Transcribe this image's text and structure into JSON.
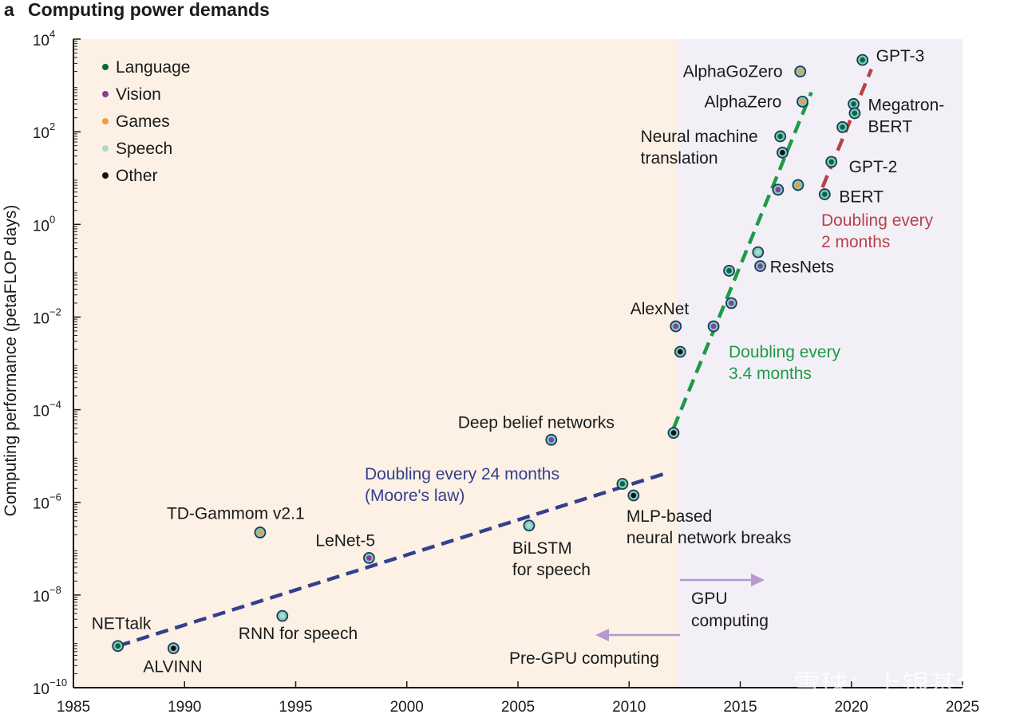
{
  "chart_data": {
    "type": "scatter",
    "panel_label": "a",
    "title": "Computing power demands",
    "xlabel": "",
    "ylabel": "Computing performance (petaFLOP days)",
    "xlim": [
      1985,
      2025
    ],
    "ylim_log10": [
      -10,
      4
    ],
    "x_ticks": [
      1985,
      1990,
      1995,
      2000,
      2005,
      2010,
      2015,
      2020,
      2025
    ],
    "x_tick_labels": [
      "1985",
      "1990",
      "1995",
      "2000",
      "2005",
      "2010",
      "2015",
      "2020",
      "2025"
    ],
    "y_ticks_log10": [
      -10,
      -8,
      -6,
      -4,
      -2,
      0,
      2,
      4
    ],
    "y_tick_labels": [
      {
        "base": "10",
        "exp": "−10"
      },
      {
        "base": "10",
        "exp": "−8"
      },
      {
        "base": "10",
        "exp": "−6"
      },
      {
        "base": "10",
        "exp": "−4"
      },
      {
        "base": "10",
        "exp": "−2"
      },
      {
        "base": "10",
        "exp": "0"
      },
      {
        "base": "10",
        "exp": "2"
      },
      {
        "base": "10",
        "exp": "4"
      }
    ],
    "regions": [
      {
        "name": "Pre-GPU computing",
        "x_from": 1985,
        "x_to": 2012.2,
        "color": "#fdf1e6"
      },
      {
        "name": "GPU computing",
        "x_from": 2012.2,
        "x_to": 2025,
        "color": "#f3eff7"
      }
    ],
    "legend": [
      {
        "name": "Language",
        "color": "#006b3f"
      },
      {
        "name": "Vision",
        "color": "#8e3a9e"
      },
      {
        "name": "Games",
        "color": "#e8a040"
      },
      {
        "name": "Speech",
        "color": "#a9dccc"
      },
      {
        "name": "Other",
        "color": "#111111"
      }
    ],
    "points": [
      {
        "label": "NETtalk",
        "x": 1987.0,
        "log10_y": -9.1,
        "category": "Language"
      },
      {
        "label": "ALVINN",
        "x": 1989.5,
        "log10_y": -9.15,
        "category": "Other"
      },
      {
        "label": "RNN for speech",
        "x": 1994.4,
        "log10_y": -8.45,
        "category": "Speech"
      },
      {
        "label": "TD-Gammom v2.1",
        "x": 1993.4,
        "log10_y": -6.65,
        "category": "Games"
      },
      {
        "label": "LeNet-5",
        "x": 1998.3,
        "log10_y": -7.2,
        "category": "Vision"
      },
      {
        "label": "BiLSTM for speech",
        "x": 2005.5,
        "log10_y": -6.5,
        "category": "Speech"
      },
      {
        "label": "Deep belief networks",
        "x": 2006.5,
        "log10_y": -4.65,
        "category": "Vision"
      },
      {
        "label": "",
        "x": 2009.7,
        "log10_y": -5.6,
        "category": "Language"
      },
      {
        "label": "MLP-based neural network breaks",
        "x": 2010.2,
        "log10_y": -5.85,
        "category": "Other"
      },
      {
        "label": "",
        "x": 2012.0,
        "log10_y": -4.5,
        "category": "Other"
      },
      {
        "label": "AlexNet",
        "x": 2012.1,
        "log10_y": -2.2,
        "category": "Vision"
      },
      {
        "label": "",
        "x": 2012.3,
        "log10_y": -2.75,
        "category": "Other"
      },
      {
        "label": "",
        "x": 2013.8,
        "log10_y": -2.2,
        "category": "Vision"
      },
      {
        "label": "",
        "x": 2014.5,
        "log10_y": -1.0,
        "category": "Language"
      },
      {
        "label": "",
        "x": 2014.6,
        "log10_y": -1.7,
        "category": "Vision"
      },
      {
        "label": "",
        "x": 2015.8,
        "log10_y": -0.6,
        "category": "Speech"
      },
      {
        "label": "ResNets",
        "x": 2015.9,
        "log10_y": -0.9,
        "category": "Vision"
      },
      {
        "label": "",
        "x": 2016.7,
        "log10_y": 0.75,
        "category": "Vision"
      },
      {
        "label": "Neural machine translation",
        "x": 2016.8,
        "log10_y": 1.9,
        "category": "Language"
      },
      {
        "label": "",
        "x": 2016.9,
        "log10_y": 1.55,
        "category": "Other"
      },
      {
        "label": "",
        "x": 2017.6,
        "log10_y": 0.85,
        "category": "Games"
      },
      {
        "label": "AlphaGoZero",
        "x": 2017.7,
        "log10_y": 3.3,
        "category": "Games"
      },
      {
        "label": "AlphaZero",
        "x": 2017.8,
        "log10_y": 2.65,
        "category": "Games"
      },
      {
        "label": "BERT",
        "x": 2018.8,
        "log10_y": 0.65,
        "category": "Language"
      },
      {
        "label": "GPT-2",
        "x": 2019.1,
        "log10_y": 1.35,
        "category": "Language"
      },
      {
        "label": "",
        "x": 2019.6,
        "log10_y": 2.1,
        "category": "Language"
      },
      {
        "label": "Megatron-BERT",
        "x": 2020.1,
        "log10_y": 2.6,
        "category": "Language"
      },
      {
        "label": "",
        "x": 2020.15,
        "log10_y": 2.4,
        "category": "Language"
      },
      {
        "label": "GPT-3",
        "x": 2020.5,
        "log10_y": 3.55,
        "category": "Language"
      }
    ],
    "trends": [
      {
        "label_lines": [
          "Doubling every 24 months",
          "(Moore's law)"
        ],
        "color": "#33408c",
        "from": {
          "x": 1987,
          "log10_y": -9.1
        },
        "to": {
          "x": 2011.8,
          "log10_y": -5.35
        }
      },
      {
        "label_lines": [
          "Doubling every",
          "3.4 months"
        ],
        "color": "#1f9a46",
        "from": {
          "x": 2012.0,
          "log10_y": -4.4
        },
        "to": {
          "x": 2018.2,
          "log10_y": 2.85
        }
      },
      {
        "label_lines": [
          "Doubling every",
          "2 months"
        ],
        "color": "#b8424a",
        "from": {
          "x": 2018.7,
          "log10_y": 0.8
        },
        "to": {
          "x": 2020.9,
          "log10_y": 3.35
        }
      }
    ],
    "annotations": {
      "gpu_label_lines": [
        "GPU",
        "computing"
      ],
      "pregpu_label": "Pre-GPU computing"
    },
    "watermark": "雪球：上银基金"
  }
}
